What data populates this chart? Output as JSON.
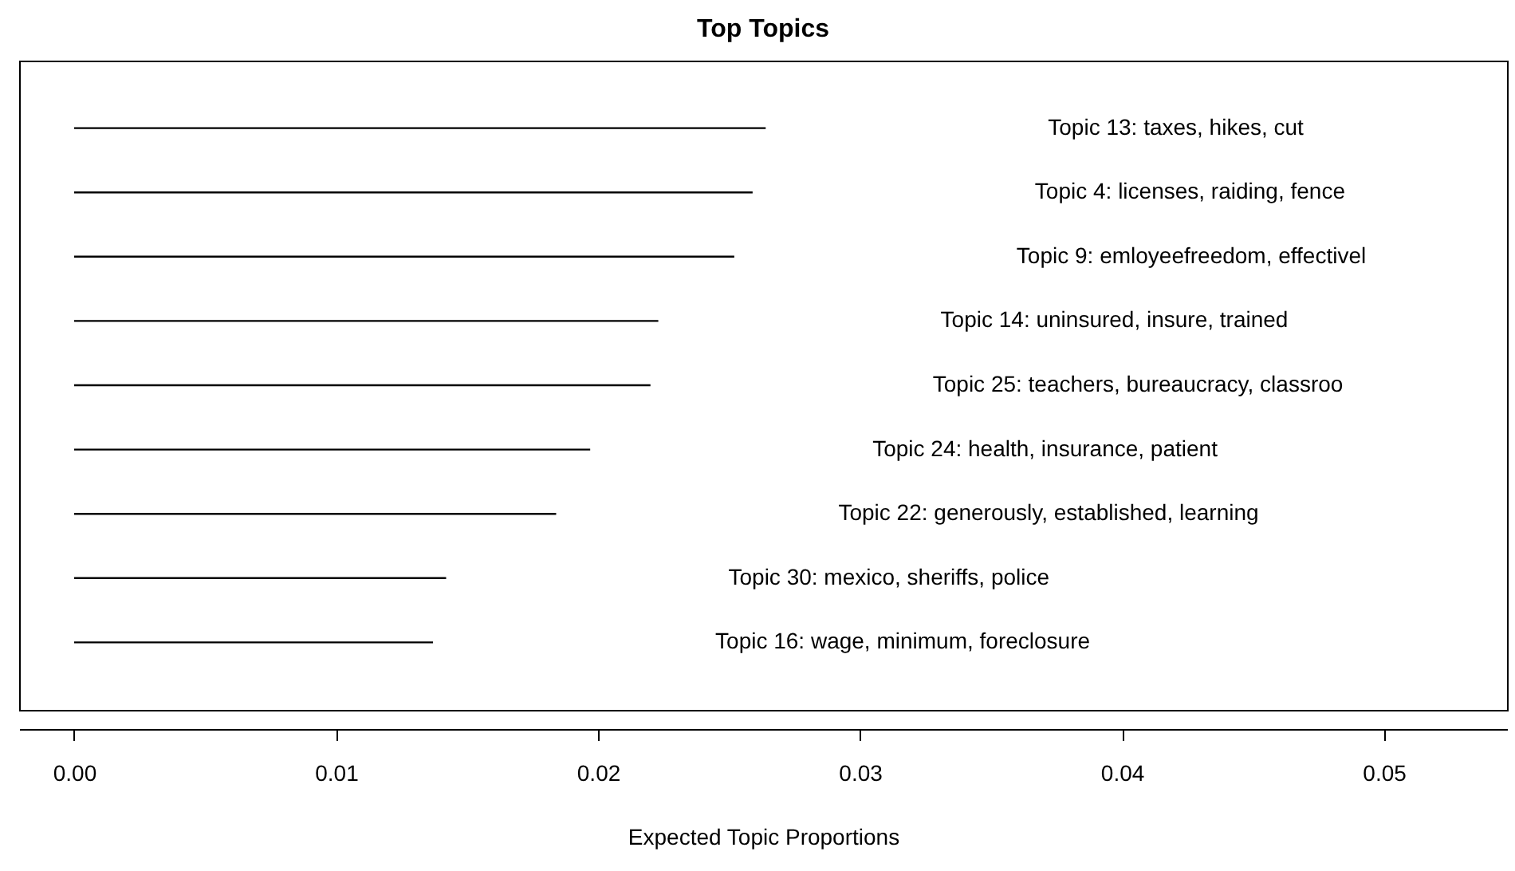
{
  "chart_data": {
    "type": "bar",
    "orientation": "horizontal",
    "title": "Top Topics",
    "xlabel": "Expected Topic Proportions",
    "categories": [
      "Topic 13: taxes, hikes, cut",
      "Topic 4: licenses, raiding, fence",
      "Topic 9: emloyeefreedom, effectivel",
      "Topic 14: uninsured, insure, trained",
      "Topic 25: teachers, bureaucracy, classroo",
      "Topic 24: health, insurance, patient",
      "Topic 22: generously, established, learning",
      "Topic 30: mexico, sheriffs, police",
      "Topic 16: wage, minimum, foreclosure"
    ],
    "values": [
      0.0264,
      0.0259,
      0.0252,
      0.0223,
      0.022,
      0.0197,
      0.0184,
      0.0142,
      0.0137
    ],
    "color": "#000000",
    "xlim": [
      -0.0021,
      0.0547
    ],
    "xticks": [
      {
        "value": 0,
        "label": "0.00"
      },
      {
        "value": 0.01,
        "label": "0.01"
      },
      {
        "value": 0.02,
        "label": "0.02"
      },
      {
        "value": 0.03,
        "label": "0.03"
      },
      {
        "value": 0.04,
        "label": "0.04"
      },
      {
        "value": 0.05,
        "label": "0.05"
      }
    ],
    "tick_labels": "x",
    "grid": false
  }
}
